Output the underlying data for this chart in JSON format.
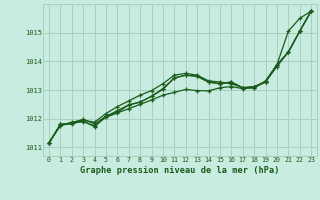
{
  "title": "Graphe pression niveau de la mer (hPa)",
  "bg_color": "#c8ece0",
  "grid_color": "#a8cfc0",
  "line_color": "#1a5c1a",
  "xlim": [
    -0.5,
    23.5
  ],
  "ylim": [
    1010.7,
    1016.0
  ],
  "xticks": [
    0,
    1,
    2,
    3,
    4,
    5,
    6,
    7,
    8,
    9,
    10,
    11,
    12,
    13,
    14,
    15,
    16,
    17,
    18,
    19,
    20,
    21,
    22,
    23
  ],
  "yticks": [
    1011,
    1012,
    1013,
    1014,
    1015
  ],
  "series": [
    [
      1011.15,
      1011.8,
      1011.85,
      1011.9,
      1011.75,
      1012.05,
      1012.2,
      1012.35,
      1012.5,
      1012.65,
      1012.82,
      1012.92,
      1013.02,
      1012.98,
      1012.97,
      1013.08,
      1013.12,
      1013.05,
      1013.08,
      1013.32,
      1013.88,
      1015.05,
      1015.5,
      1015.75
    ],
    [
      1011.15,
      1011.78,
      1011.82,
      1011.92,
      1011.72,
      1012.08,
      1012.22,
      1012.48,
      1012.58,
      1012.78,
      1013.05,
      1013.42,
      1013.52,
      1013.48,
      1013.28,
      1013.22,
      1013.28,
      1013.08,
      1013.12,
      1013.28,
      1013.88,
      1014.32,
      1015.05,
      1015.75
    ],
    [
      1011.15,
      1011.75,
      1011.88,
      1011.95,
      1011.88,
      1012.18,
      1012.42,
      1012.62,
      1012.82,
      1012.98,
      1013.22,
      1013.52,
      1013.58,
      1013.52,
      1013.32,
      1013.28,
      1013.22,
      1013.08,
      1013.08,
      1013.28,
      1013.82,
      1014.32,
      1015.05,
      1015.75
    ],
    [
      1011.15,
      1011.8,
      1011.85,
      1011.98,
      1011.82,
      1012.08,
      1012.28,
      1012.48,
      1012.58,
      1012.78,
      1013.02,
      1013.42,
      1013.52,
      1013.48,
      1013.28,
      1013.22,
      1013.28,
      1013.08,
      1013.12,
      1013.28,
      1013.88,
      1014.32,
      1015.05,
      1015.75
    ]
  ]
}
